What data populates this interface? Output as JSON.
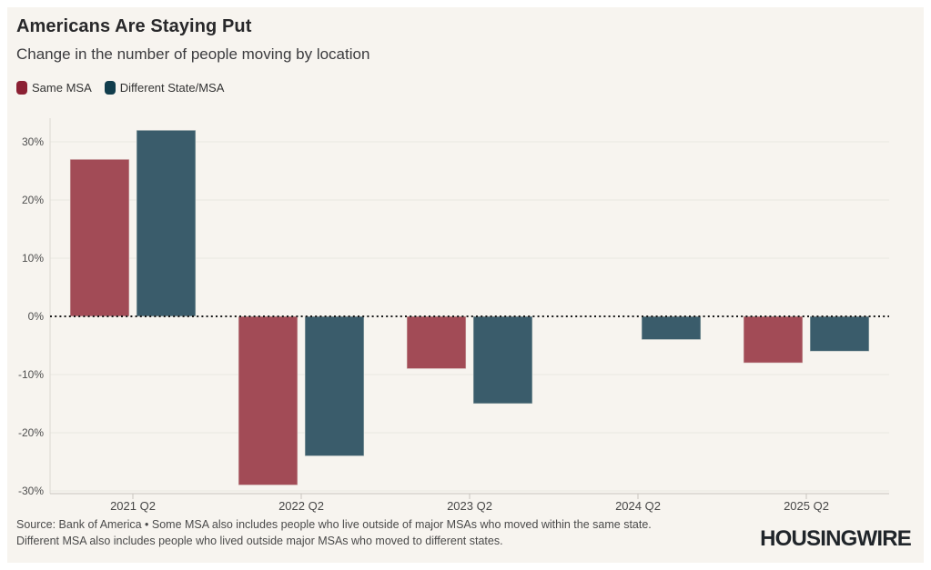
{
  "header": {
    "title": "Americans Are Staying Put",
    "subtitle": "Change in the number of people moving by location"
  },
  "legend": [
    {
      "label": "Same MSA",
      "color": "#8B2033"
    },
    {
      "label": "Different State/MSA",
      "color": "#113D4C"
    }
  ],
  "chart_data": {
    "type": "bar",
    "categories": [
      "2021 Q2",
      "2022 Q2",
      "2023 Q2",
      "2024 Q2",
      "2025 Q2"
    ],
    "series": [
      {
        "name": "Same MSA",
        "color": "#A24B56",
        "values": [
          27,
          -29,
          -9,
          null,
          -8
        ]
      },
      {
        "name": "Different State/MSA",
        "color": "#3A5C6B",
        "values": [
          32,
          -24,
          -15,
          -4,
          -6
        ]
      }
    ],
    "title": "Americans Are Staying Put",
    "subtitle": "Change in the number of people moving by location",
    "xlabel": "",
    "ylabel": "",
    "yticks": [
      30,
      20,
      10,
      0,
      -10,
      -20,
      -30
    ],
    "ytick_format": "percent",
    "ylim": [
      -31,
      35
    ],
    "grid": "horizontal",
    "zero_line": "dotted-black",
    "legend_position": "top-left",
    "colors": {
      "background": "#F7F4EF",
      "gridline": "#EAE7E1",
      "axis": "#C8C5BF",
      "tick_label": "#4F4F4F",
      "zero_line": "#1A1A1A"
    }
  },
  "footer": {
    "source_line1": "Source: Bank of America • Some MSA also includes people who live outside of major MSAs who moved within the same state.",
    "source_line2": "Different MSA also includes people who lived outside major MSAs who moved to different states.",
    "brand": "HOUSINGWIRE"
  }
}
